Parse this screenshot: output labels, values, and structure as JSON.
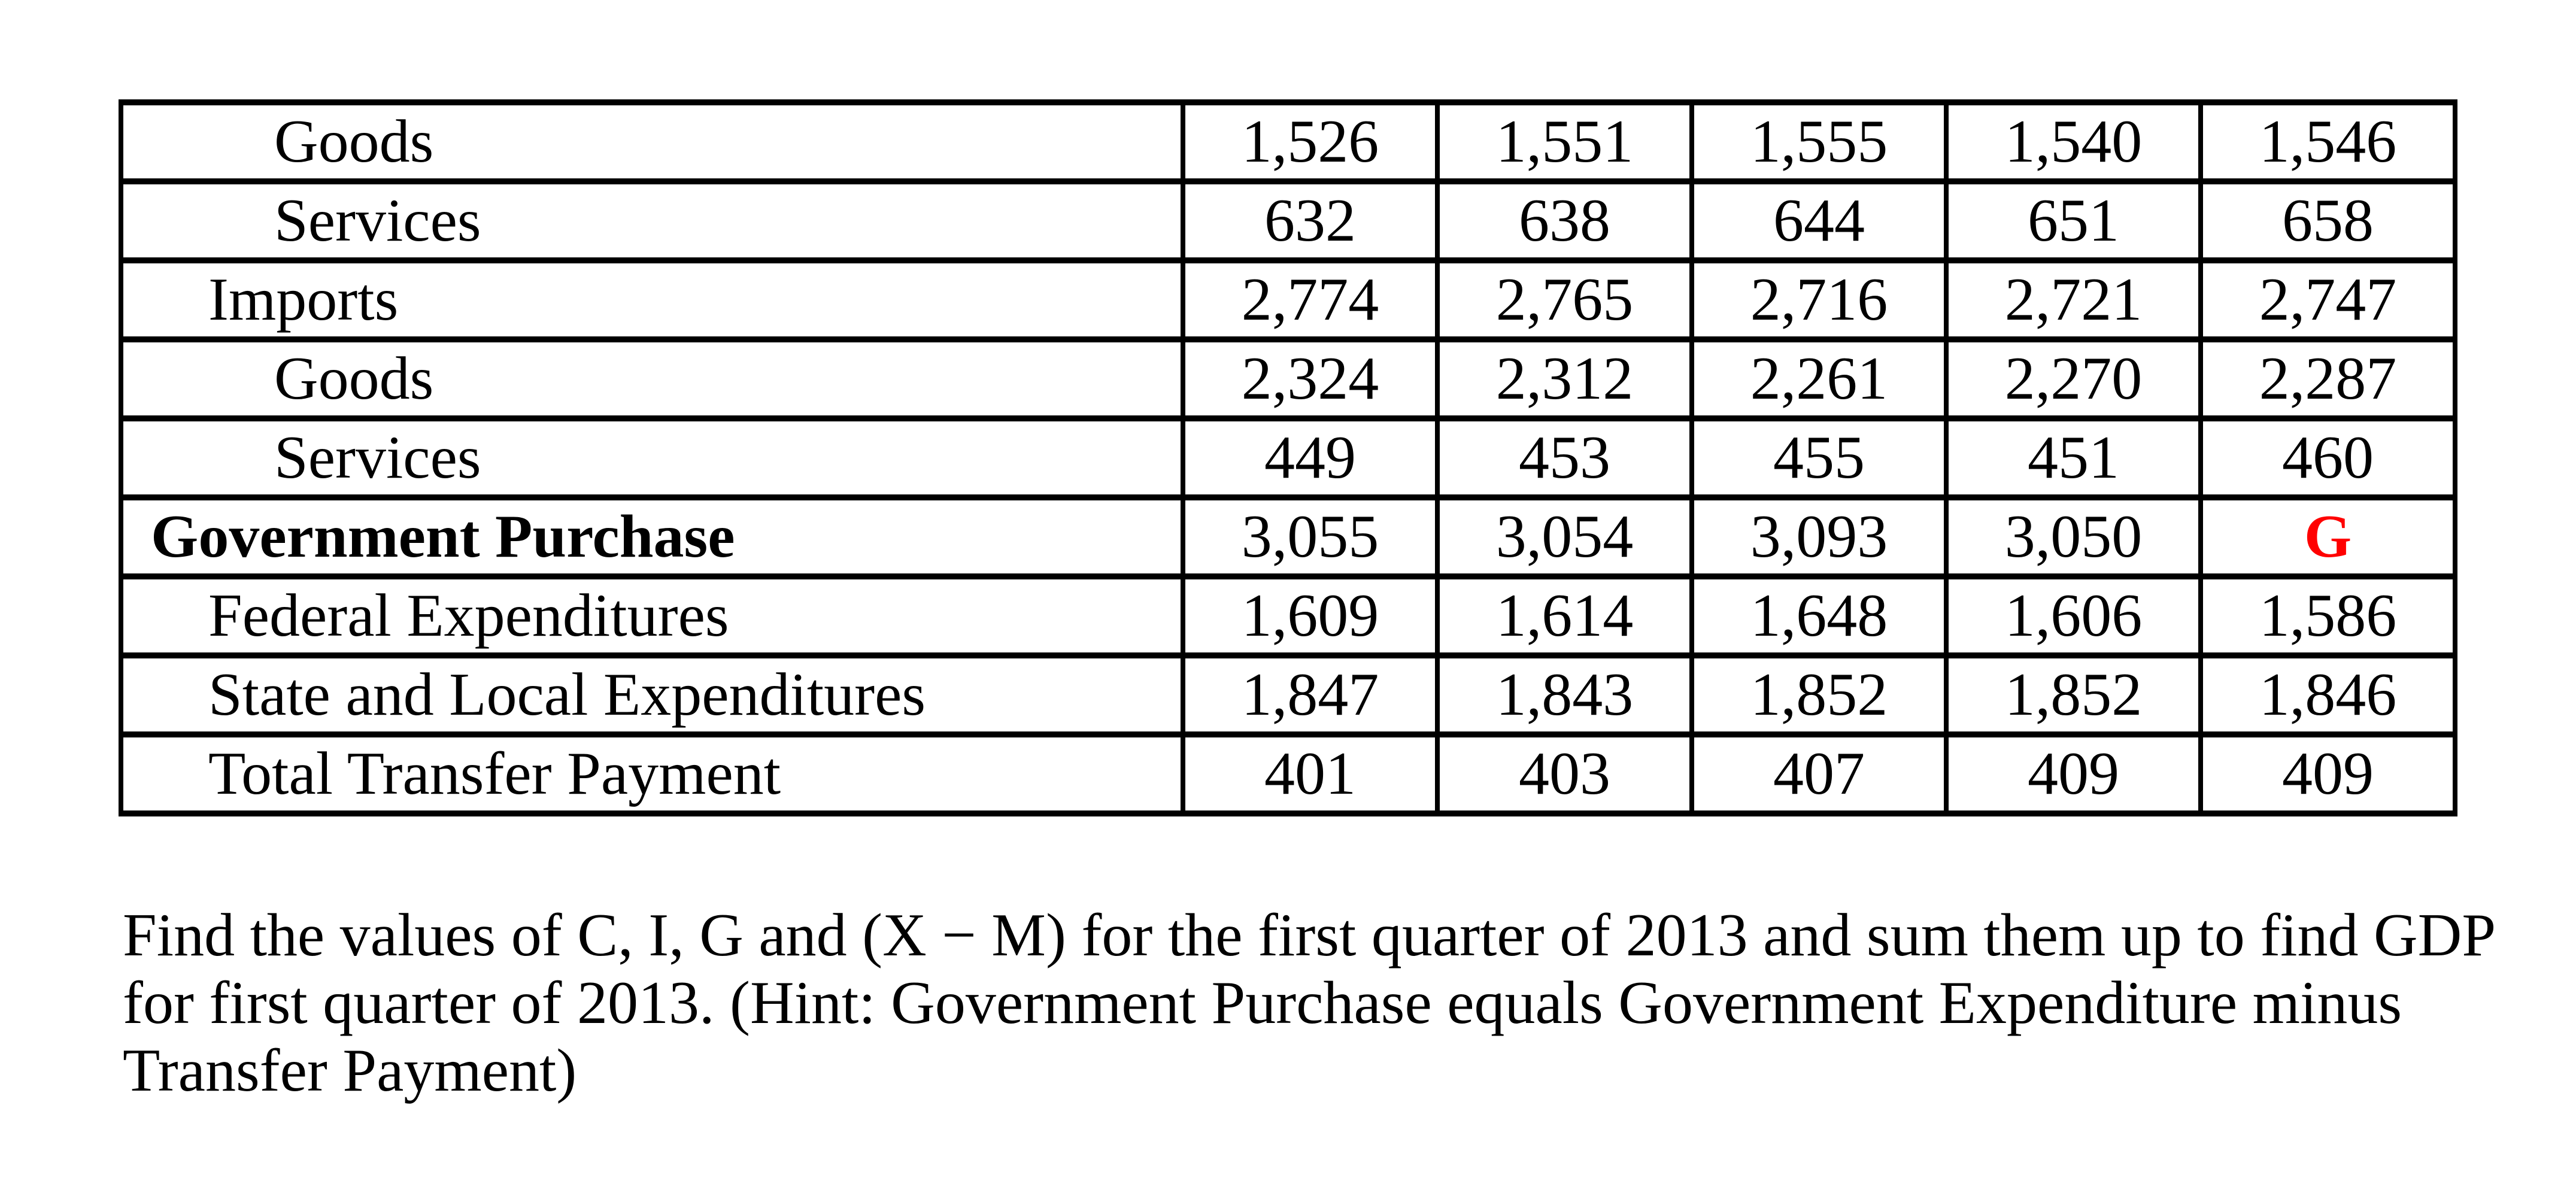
{
  "colors": {
    "background": "#ffffff",
    "text": "#000000",
    "border": "#000000",
    "highlight_red": "#ff0000"
  },
  "table": {
    "description_note": "GDP components table, 5 quarterly value columns (no visible headers)",
    "rows": [
      {
        "label": "Goods",
        "indent": 2,
        "bold": false,
        "values": [
          "1,526",
          "1,551",
          "1,555",
          "1,540",
          "1,546"
        ]
      },
      {
        "label": "Services",
        "indent": 2,
        "bold": false,
        "values": [
          "632",
          "638",
          "644",
          "651",
          "658"
        ]
      },
      {
        "label": "Imports",
        "indent": 1,
        "bold": false,
        "values": [
          "2,774",
          "2,765",
          "2,716",
          "2,721",
          "2,747"
        ]
      },
      {
        "label": "Goods",
        "indent": 2,
        "bold": false,
        "values": [
          "2,324",
          "2,312",
          "2,261",
          "2,270",
          "2,287"
        ]
      },
      {
        "label": "Services",
        "indent": 2,
        "bold": false,
        "values": [
          "449",
          "453",
          "455",
          "451",
          "460"
        ]
      },
      {
        "label": "Government Purchase",
        "indent": 0,
        "bold": true,
        "values": [
          "3,055",
          "3,054",
          "3,093",
          "3,050",
          "G"
        ],
        "red_value_index": 4
      },
      {
        "label": "Federal Expenditures",
        "indent": 1,
        "bold": false,
        "values": [
          "1,609",
          "1,614",
          "1,648",
          "1,606",
          "1,586"
        ]
      },
      {
        "label": "State and Local Expenditures",
        "indent": 1,
        "bold": false,
        "values": [
          "1,847",
          "1,843",
          "1,852",
          "1,852",
          "1,846"
        ]
      },
      {
        "label": "Total Transfer Payment",
        "indent": 1,
        "bold": false,
        "values": [
          "401",
          "403",
          "407",
          "409",
          "409"
        ]
      }
    ]
  },
  "question": {
    "lines": [
      "Find the values of C, I, G and (X − M) for the first quarter of 2013 and sum them up to find GDP",
      "for first quarter of 2013. (Hint: Government Purchase equals Government Expenditure minus",
      "Transfer Payment)"
    ]
  }
}
